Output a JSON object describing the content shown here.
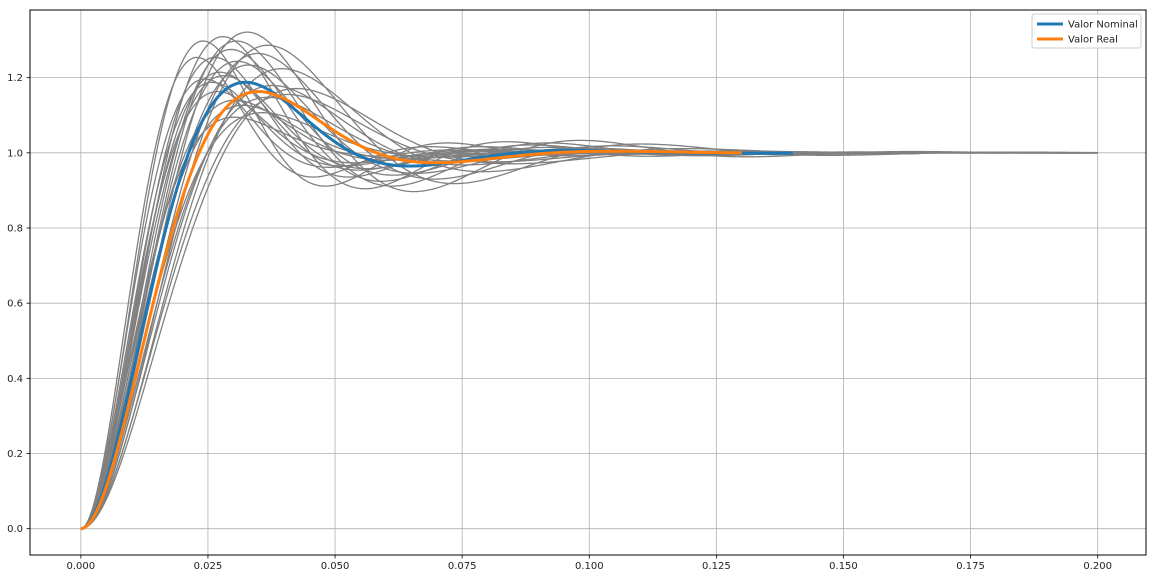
{
  "chart_data": {
    "type": "line",
    "title": "",
    "xlabel": "",
    "ylabel": "",
    "xlim": [
      -0.01,
      0.2095
    ],
    "ylim": [
      -0.07,
      1.38
    ],
    "grid": true,
    "legend_position": "top-right",
    "x_ticks": [
      "0.000",
      "0.025",
      "0.050",
      "0.075",
      "0.100",
      "0.125",
      "0.150",
      "0.175",
      "0.200"
    ],
    "y_ticks": [
      "0.0",
      "0.2",
      "0.4",
      "0.6",
      "0.8",
      "1.0",
      "1.2"
    ],
    "colors": {
      "nominal": "#1f77b4",
      "real": "#ff7f0e",
      "samples": "#808080",
      "grid": "#b0b0b0"
    },
    "series": [
      {
        "name": "Valor Nominal",
        "role": "nominal",
        "zeta": 0.47,
        "wn": 110,
        "t_end": 0.14
      },
      {
        "name": "Valor Real",
        "role": "real",
        "zeta": 0.5,
        "wn": 104,
        "t_end": 0.13
      }
    ],
    "samples": [
      {
        "zeta": 0.35,
        "wn": 120,
        "t_end": 0.2
      },
      {
        "zeta": 0.38,
        "wn": 115,
        "t_end": 0.2
      },
      {
        "zeta": 0.4,
        "wn": 130,
        "t_end": 0.165
      },
      {
        "zeta": 0.42,
        "wn": 105,
        "t_end": 0.165
      },
      {
        "zeta": 0.45,
        "wn": 125,
        "t_end": 0.15
      },
      {
        "zeta": 0.48,
        "wn": 95,
        "t_end": 0.15
      },
      {
        "zeta": 0.5,
        "wn": 135,
        "t_end": 0.14
      },
      {
        "zeta": 0.52,
        "wn": 100,
        "t_end": 0.14
      },
      {
        "zeta": 0.36,
        "wn": 140,
        "t_end": 0.165
      },
      {
        "zeta": 0.43,
        "wn": 88,
        "t_end": 0.165
      },
      {
        "zeta": 0.55,
        "wn": 118,
        "t_end": 0.13
      },
      {
        "zeta": 0.39,
        "wn": 98,
        "t_end": 0.2
      },
      {
        "zeta": 0.46,
        "wn": 145,
        "t_end": 0.13
      },
      {
        "zeta": 0.58,
        "wn": 108,
        "t_end": 0.125
      },
      {
        "zeta": 0.41,
        "wn": 112,
        "t_end": 0.15
      },
      {
        "zeta": 0.44,
        "wn": 128,
        "t_end": 0.14
      },
      {
        "zeta": 0.37,
        "wn": 92,
        "t_end": 0.2
      },
      {
        "zeta": 0.53,
        "wn": 122,
        "t_end": 0.13
      },
      {
        "zeta": 0.34,
        "wn": 102,
        "t_end": 0.2
      },
      {
        "zeta": 0.49,
        "wn": 85,
        "t_end": 0.15
      },
      {
        "zeta": 0.6,
        "wn": 130,
        "t_end": 0.125
      },
      {
        "zeta": 0.4,
        "wn": 150,
        "t_end": 0.14
      },
      {
        "zeta": 0.47,
        "wn": 138,
        "t_end": 0.13
      },
      {
        "zeta": 0.51,
        "wn": 90,
        "t_end": 0.15
      },
      {
        "zeta": 0.36,
        "wn": 110,
        "t_end": 0.2
      }
    ]
  }
}
